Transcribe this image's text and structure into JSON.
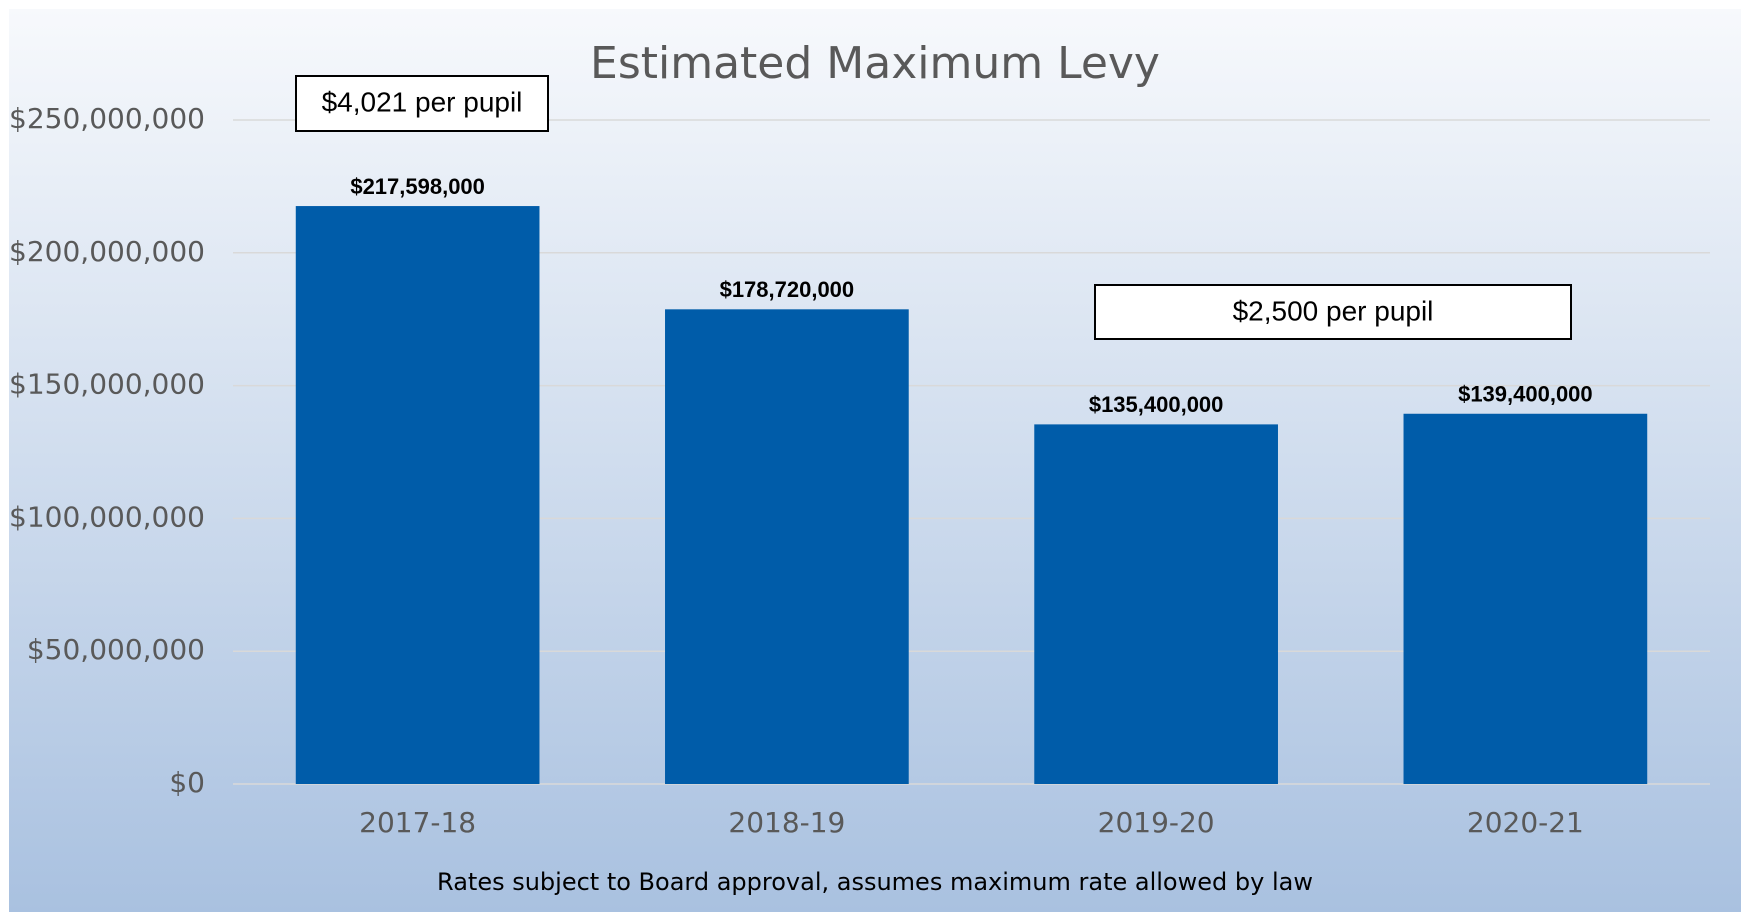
{
  "chart_data": {
    "type": "bar",
    "title": "Estimated Maximum Levy",
    "categories": [
      "2017-18",
      "2018-19",
      "2019-20",
      "2020-21"
    ],
    "values": [
      217598000,
      178720000,
      135400000,
      139400000
    ],
    "value_labels": [
      "$217,598,000",
      "$178,720,000",
      "$135,400,000",
      "$139,400,000"
    ],
    "color": "#005ca9",
    "ylim": [
      0,
      250000000
    ],
    "yticks": [
      {
        "value": 0,
        "label": "$0"
      },
      {
        "value": 50000000,
        "label": "$50,000,000"
      },
      {
        "value": 100000000,
        "label": "$100,000,000"
      },
      {
        "value": 150000000,
        "label": "$150,000,000"
      },
      {
        "value": 200000000,
        "label": "$200,000,000"
      },
      {
        "value": 250000000,
        "label": "$250,000,000"
      }
    ],
    "grid": true,
    "annotations": [
      "$4,021 per pupil",
      "$2,500 per pupil"
    ],
    "footnote": "Rates subject to Board approval, assumes maximum rate allowed by law"
  }
}
